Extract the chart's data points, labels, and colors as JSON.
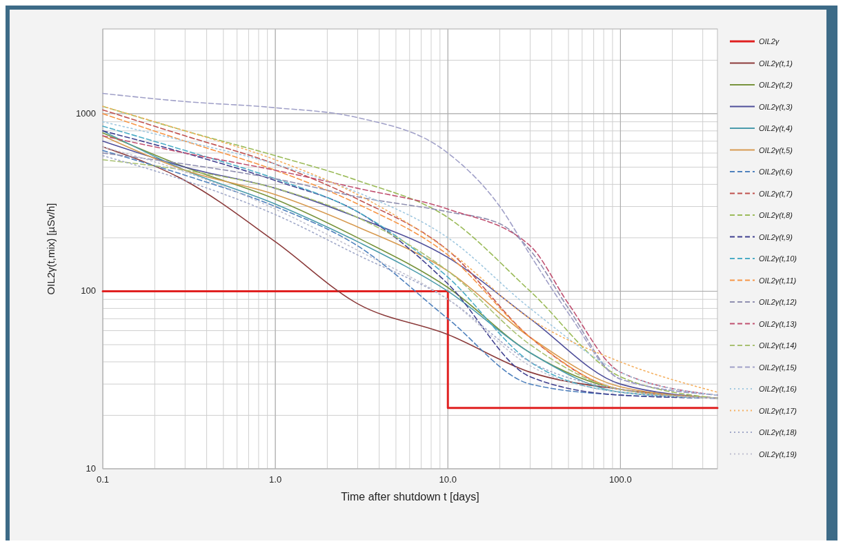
{
  "chart_data": {
    "type": "line",
    "xlabel": "Time after shutdown t [days]",
    "ylabel": "OIL2γ(t,mix)  [µSv/h]",
    "log": "xy",
    "grid": true,
    "legend": "right",
    "xlim": [
      0.1,
      365
    ],
    "xticks": [
      0.1,
      {
        "value": 1,
        "label": "1.0"
      },
      {
        "value": 10,
        "label": "10.0"
      },
      {
        "value": 100,
        "label": "100.0"
      }
    ],
    "ylim": [
      10,
      3000
    ],
    "yticks": [
      10,
      100,
      1000
    ],
    "x": [
      0.1,
      0.3,
      1,
      3,
      10,
      30,
      100,
      365
    ],
    "series": [
      {
        "name": "OIL2γ",
        "type": "step",
        "color": "#e02020",
        "x": [
          0.1,
          10,
          365
        ],
        "values": [
          100,
          22,
          22
        ],
        "line_style": "solid"
      },
      {
        "name": "OIL2γ(t,1)",
        "color": "#8b3a3a",
        "values": [
          650,
          420,
          190,
          85,
          57,
          35,
          28,
          25
        ],
        "line_style": "solid"
      },
      {
        "name": "OIL2γ(t,2)",
        "color": "#77933c",
        "values": [
          780,
          500,
          330,
          200,
          105,
          45,
          28,
          25
        ],
        "line_style": "solid"
      },
      {
        "name": "OIL2γ(t,3)",
        "color": "#4f4f9a",
        "values": [
          700,
          500,
          380,
          260,
          155,
          70,
          30,
          25
        ],
        "line_style": "solid"
      },
      {
        "name": "OIL2γ(t,4)",
        "color": "#4a9bab",
        "values": [
          800,
          480,
          310,
          190,
          100,
          45,
          27,
          25
        ],
        "line_style": "solid"
      },
      {
        "name": "OIL2γ(t,5)",
        "color": "#d79a50",
        "values": [
          750,
          480,
          350,
          230,
          130,
          55,
          29,
          25
        ],
        "line_style": "solid"
      },
      {
        "name": "OIL2γ(t,6)",
        "color": "#4f81bd",
        "values": [
          620,
          450,
          300,
          180,
          70,
          30,
          26,
          25
        ],
        "line_style": "dashed"
      },
      {
        "name": "OIL2γ(t,7)",
        "color": "#c0504d",
        "values": [
          1050,
          750,
          520,
          330,
          170,
          55,
          28,
          25
        ],
        "line_style": "dashed"
      },
      {
        "name": "OIL2γ(t,8)",
        "color": "#9bbb59",
        "values": [
          1100,
          800,
          580,
          420,
          260,
          100,
          33,
          25
        ],
        "line_style": "dashed"
      },
      {
        "name": "OIL2γ(t,9)",
        "color": "#3f3f8f",
        "values": [
          800,
          600,
          420,
          280,
          110,
          33,
          26,
          25
        ],
        "line_style": "dashed"
      },
      {
        "name": "OIL2γ(t,10)",
        "color": "#4bacc6",
        "values": [
          850,
          620,
          430,
          280,
          120,
          40,
          27,
          25
        ],
        "line_style": "dashed"
      },
      {
        "name": "OIL2γ(t,11)",
        "color": "#f79646",
        "values": [
          1000,
          700,
          480,
          310,
          160,
          55,
          28,
          25
        ],
        "line_style": "dashed"
      },
      {
        "name": "OIL2γ(t,12)",
        "color": "#8f8fb0",
        "x": [
          0.1,
          0.3,
          1,
          3,
          10,
          20,
          30,
          50,
          100,
          365
        ],
        "values": [
          600,
          520,
          430,
          340,
          280,
          240,
          170,
          80,
          32,
          26
        ],
        "line_style": "dashed"
      },
      {
        "name": "OIL2γ(t,13)",
        "color": "#c05070",
        "x": [
          0.1,
          0.3,
          1,
          3,
          10,
          30,
          50,
          100,
          365
        ],
        "values": [
          750,
          600,
          480,
          380,
          290,
          180,
          85,
          35,
          26
        ],
        "line_style": "dashed"
      },
      {
        "name": "OIL2γ(t,14)",
        "color": "#a8c070",
        "values": [
          550,
          480,
          380,
          260,
          130,
          50,
          28,
          25
        ],
        "line_style": "dashed"
      },
      {
        "name": "OIL2γ(t,15)",
        "color": "#a0a0c8",
        "x": [
          0.1,
          0.3,
          1,
          3,
          10,
          20,
          30,
          50,
          100,
          365
        ],
        "values": [
          1300,
          1170,
          1080,
          950,
          600,
          300,
          160,
          75,
          32,
          26
        ],
        "line_style": "dashed"
      },
      {
        "name": "OIL2γ(t,16)",
        "color": "#a0c8e0",
        "values": [
          900,
          700,
          520,
          360,
          200,
          80,
          35,
          26
        ],
        "line_style": "dotted"
      },
      {
        "name": "OIL2γ(t,17)",
        "color": "#f5b060",
        "values": [
          1100,
          800,
          550,
          350,
          170,
          70,
          40,
          27
        ],
        "line_style": "dotted"
      },
      {
        "name": "OIL2γ(t,18)",
        "color": "#a0a8c8",
        "values": [
          580,
          420,
          270,
          160,
          90,
          40,
          28,
          25
        ],
        "line_style": "dotted"
      },
      {
        "name": "OIL2γ(t,19)",
        "color": "#c0c0d0",
        "values": [
          650,
          470,
          290,
          170,
          90,
          38,
          27,
          25
        ],
        "line_style": "dotted"
      }
    ]
  }
}
